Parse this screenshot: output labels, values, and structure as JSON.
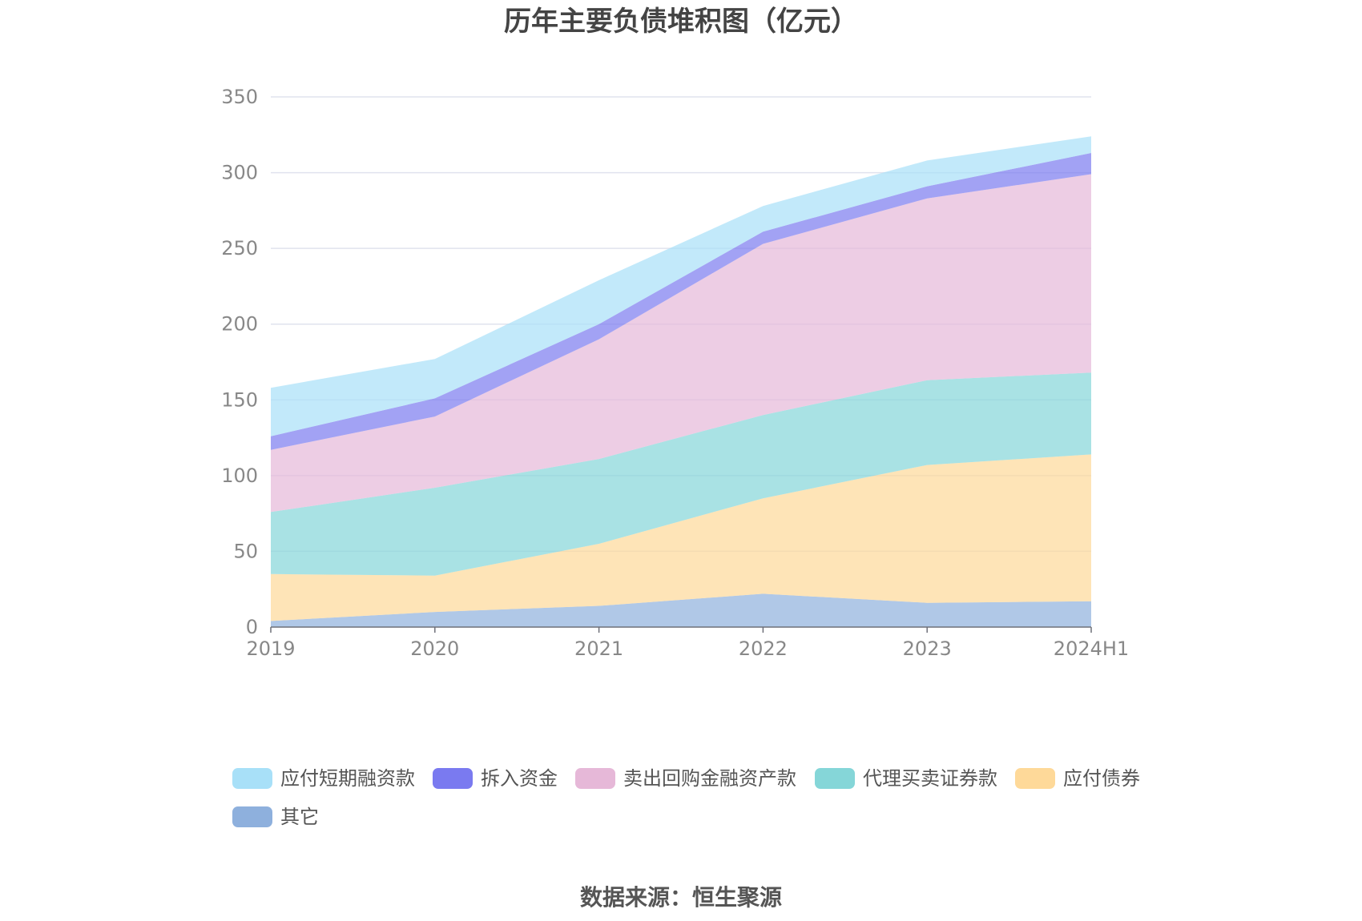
{
  "chart_data": {
    "type": "area",
    "stacked": true,
    "title": "历年主要负债堆积图（亿元）",
    "categories": [
      "2019",
      "2020",
      "2021",
      "2022",
      "2023",
      "2024H1"
    ],
    "ylim": [
      0,
      350
    ],
    "yticks": [
      0,
      50,
      100,
      150,
      200,
      250,
      300,
      350
    ],
    "grid": true,
    "legend_position": "bottom",
    "series": [
      {
        "name": "其它",
        "color": "#8eb0dd",
        "values": [
          4,
          10,
          14,
          22,
          16,
          17
        ]
      },
      {
        "name": "应付债券",
        "color": "#fed999",
        "values": [
          31,
          24,
          41,
          63,
          91,
          97
        ]
      },
      {
        "name": "代理买卖证券款",
        "color": "#85d6d8",
        "values": [
          41,
          58,
          56,
          55,
          56,
          54
        ]
      },
      {
        "name": "卖出回购金融资产款",
        "color": "#e6b8d8",
        "values": [
          41,
          47,
          79,
          113,
          120,
          131
        ]
      },
      {
        "name": "拆入资金",
        "color": "#7a7af0",
        "values": [
          9,
          12,
          10,
          8,
          8,
          14
        ]
      },
      {
        "name": "应付短期融资款",
        "color": "#a8e0f8",
        "values": [
          32,
          26,
          29,
          17,
          17,
          11
        ]
      }
    ],
    "legend_order": [
      "应付短期融资款",
      "拆入资金",
      "卖出回购金融资产款",
      "代理买卖证券款",
      "应付债券",
      "其它"
    ]
  },
  "source": "数据来源：恒生聚源"
}
